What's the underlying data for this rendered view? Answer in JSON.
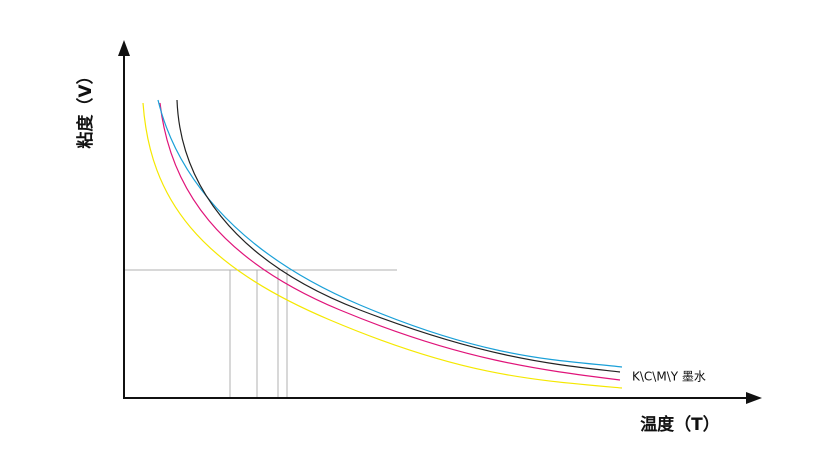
{
  "y_axis_label": "粘度（V）",
  "x_axis_label": "温度（T）",
  "curve_label": "K\\C\\M\\Y 墨水"
}
